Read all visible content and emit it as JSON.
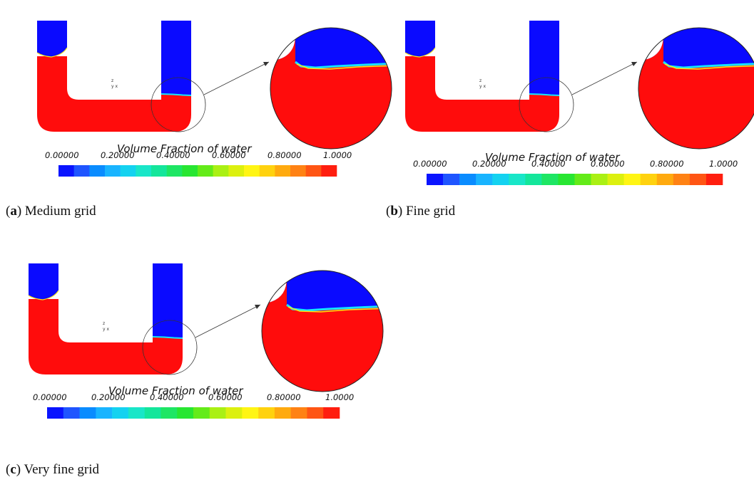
{
  "colorbar": {
    "title": "Volume Fraction of water",
    "ticks": [
      "0.00000",
      "0.20000",
      "0.40000",
      "0.60000",
      "0.80000",
      "1.0000"
    ],
    "colors": [
      "#0a14ff",
      "#1f55ff",
      "#0a8cff",
      "#19b4ff",
      "#14d2f0",
      "#19e6c8",
      "#14e69b",
      "#1ee664",
      "#28e632",
      "#64eb19",
      "#aaf014",
      "#dcf00f",
      "#fff514",
      "#ffd20f",
      "#ffaa0f",
      "#ff8214",
      "#ff5514",
      "#ff1e0f"
    ]
  },
  "fluid_colors": {
    "water": "#ff0c0c",
    "air": "#0a0aff",
    "interface": [
      "#14e6ff",
      "#ffe614",
      "#ff8c14"
    ]
  },
  "axis_glyph": {
    "z": "z",
    "xy": "y x"
  },
  "panels": [
    {
      "id": "a",
      "caption_letter": "a",
      "caption_text": "Medium grid"
    },
    {
      "id": "b",
      "caption_letter": "b",
      "caption_text": "Fine grid"
    },
    {
      "id": "c",
      "caption_letter": "c",
      "caption_text": "Very fine grid"
    }
  ]
}
